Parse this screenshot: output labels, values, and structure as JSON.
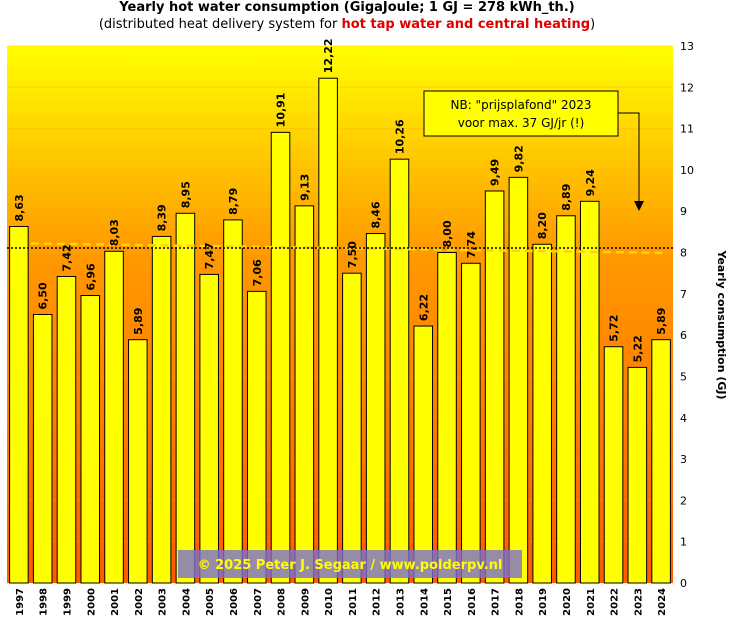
{
  "title": "Yearly hot water consumption  (GigaJoule;  1 GJ = 278 kWh_th.)",
  "subtitle": {
    "before": "(distributed  heat delivery  system  for ",
    "highlight": "hot tap water and central heating",
    "after": ")"
  },
  "note": {
    "line1": "NB: \"prijsplafond\"  2023",
    "line2": "voor max.  37 GJ/jr  (!)"
  },
  "credit": "© 2025  Peter J. Segaar  /  www.polderpv.nl",
  "chart_data": {
    "type": "bar",
    "categories": [
      "1997",
      "1998",
      "1999",
      "2000",
      "2001",
      "2002",
      "2003",
      "2004",
      "2005",
      "2006",
      "2007",
      "2008",
      "2009",
      "2010",
      "2011",
      "2012",
      "2013",
      "2014",
      "2015",
      "2016",
      "2017",
      "2018",
      "2019",
      "2020",
      "2021",
      "2022",
      "2023",
      "2024"
    ],
    "values": [
      8.63,
      6.5,
      7.42,
      6.96,
      8.03,
      5.89,
      8.39,
      8.95,
      7.47,
      8.79,
      7.06,
      10.91,
      9.13,
      12.22,
      7.5,
      8.46,
      10.26,
      6.22,
      8.0,
      7.74,
      9.49,
      9.82,
      8.2,
      8.89,
      9.24,
      5.72,
      5.22,
      5.89
    ],
    "value_labels": [
      "8,63",
      "6,50",
      "7,42",
      "6,96",
      "8,03",
      "5,89",
      "8,39",
      "8,95",
      "7,47",
      "8,79",
      "7,06",
      "10,91",
      "9,13",
      "12,22",
      "7,50",
      "8,46",
      "10,26",
      "6,22",
      "8,00",
      "7,74",
      "9,49",
      "9,82",
      "8,20",
      "8,89",
      "9,24",
      "5,72",
      "5,22",
      "5,89"
    ],
    "ylabel": "Yearly consumption (GJ)",
    "ylim": [
      0,
      13
    ],
    "yticks": [
      0,
      1,
      2,
      3,
      4,
      5,
      6,
      7,
      8,
      9,
      10,
      11,
      12,
      13
    ],
    "average_line": 8.11,
    "trend_line": {
      "x_from": "1998",
      "x_to": "2024",
      "y_from": 8.22,
      "y_to": 7.99
    },
    "colors": {
      "bar_fill": "#ffff00",
      "bar_stroke": "#000000",
      "background_top": "#ffff00",
      "background_mid": "#ff9900",
      "background_bottom": "#ff5500",
      "trend": "#ffd400",
      "average": "#000000"
    }
  }
}
